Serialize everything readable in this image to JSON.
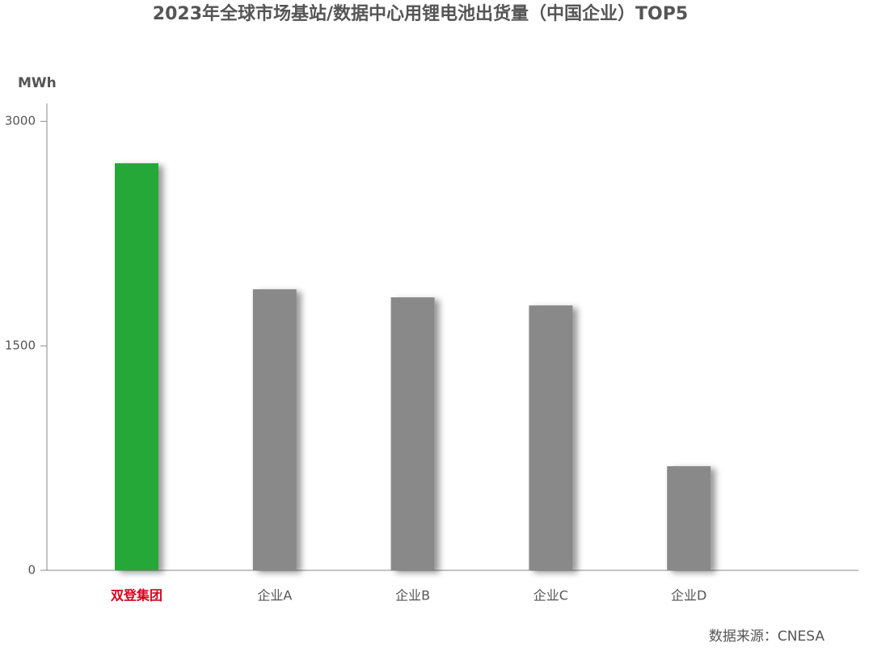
{
  "chart_data": {
    "type": "bar",
    "title": "2023年全球市场基站/数据中心用锂电池出货量（中国企业）TOP5",
    "y_label": "MWh",
    "source": "数据来源：CNESA",
    "categories": [
      "双登集团",
      "企业A",
      "企业B",
      "企业C",
      "企业D"
    ],
    "values": [
      2720,
      1878,
      1824,
      1770,
      696
    ],
    "colors": [
      "#27a838",
      "#898989",
      "#898989",
      "#898989",
      "#898989"
    ],
    "label_colors": [
      "#d9001b",
      "#555555",
      "#555555",
      "#555555",
      "#555555"
    ],
    "ylim": [
      0,
      3120
    ],
    "yticks": [
      0,
      1500,
      3000
    ],
    "grid": false
  }
}
